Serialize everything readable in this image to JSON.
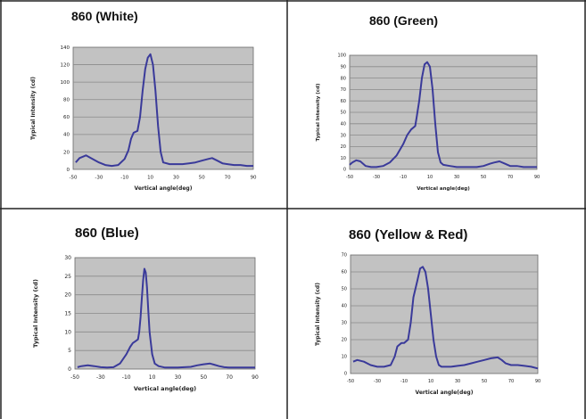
{
  "colors": {
    "plot_bg": "#c2c2c2",
    "grid": "#8a8a8a",
    "curve": "#3a3a9a",
    "border": "#222222"
  },
  "titles": {
    "white": "860 (White)",
    "green": "860 (Green)",
    "blue": "860 (Blue)",
    "yellow_red": "860 (Yellow & Red)"
  },
  "chart_data": [
    {
      "type": "line",
      "title": "860 (White)",
      "xlabel": "Vertical angle(deg)",
      "ylabel": "Typical Intensity (cd)",
      "xlim": [
        -50,
        90
      ],
      "ylim": [
        0,
        140
      ],
      "xticks": [
        "-50",
        "-30",
        "-10",
        "10",
        "30",
        "50",
        "70",
        "90"
      ],
      "yticks": [
        "0",
        "20",
        "40",
        "60",
        "80",
        "100",
        "120",
        "140"
      ],
      "series": [
        {
          "x": [
            -48,
            -45,
            -40,
            -35,
            -30,
            -25,
            -20,
            -15,
            -10,
            -7,
            -5,
            -3,
            0,
            2,
            4,
            6,
            8,
            10,
            12,
            14,
            16,
            18,
            20,
            25,
            30,
            35,
            40,
            45,
            50,
            55,
            58,
            62,
            66,
            70,
            75,
            80,
            85,
            90
          ],
          "y": [
            8,
            13,
            16,
            12,
            8,
            5,
            4,
            5,
            12,
            22,
            35,
            42,
            44,
            60,
            90,
            115,
            128,
            132,
            120,
            90,
            50,
            20,
            8,
            6,
            6,
            6,
            7,
            8,
            10,
            12,
            13,
            10,
            7,
            6,
            5,
            5,
            4,
            4
          ]
        }
      ]
    },
    {
      "type": "line",
      "title": "860 (Green)",
      "xlabel": "Vertical angle(deg)",
      "ylabel": "Typical Intensity (cd)",
      "xlim": [
        -50,
        90
      ],
      "ylim": [
        0,
        100
      ],
      "xticks": [
        "-50",
        "-30",
        "-10",
        "10",
        "30",
        "50",
        "70",
        "90"
      ],
      "yticks": [
        "0",
        "10",
        "20",
        "30",
        "40",
        "50",
        "60",
        "70",
        "80",
        "90",
        "100"
      ],
      "series": [
        {
          "x": [
            -50,
            -48,
            -45,
            -42,
            -38,
            -34,
            -30,
            -25,
            -20,
            -15,
            -10,
            -7,
            -4,
            -1,
            0,
            2,
            4,
            6,
            8,
            10,
            12,
            14,
            16,
            18,
            20,
            25,
            30,
            35,
            40,
            45,
            50,
            55,
            58,
            62,
            66,
            70,
            75,
            80,
            85,
            90
          ],
          "y": [
            4,
            6,
            8,
            7,
            3,
            2,
            2,
            3,
            6,
            12,
            22,
            30,
            35,
            38,
            45,
            60,
            80,
            92,
            94,
            90,
            70,
            40,
            15,
            6,
            4,
            3,
            2,
            2,
            2,
            2,
            3,
            5,
            6,
            7,
            5,
            3,
            3,
            2,
            2,
            2
          ]
        }
      ]
    },
    {
      "type": "line",
      "title": "860 (Blue)",
      "xlabel": "Vertical angle(deg)",
      "ylabel": "Typical Intensity (cd)",
      "xlim": [
        -50,
        90
      ],
      "ylim": [
        0,
        30
      ],
      "xticks": [
        "-50",
        "-30",
        "-10",
        "10",
        "30",
        "50",
        "70",
        "90"
      ],
      "yticks": [
        "0",
        "5",
        "10",
        "15",
        "20",
        "25",
        "30"
      ],
      "series": [
        {
          "x": [
            -48,
            -45,
            -40,
            -35,
            -30,
            -25,
            -20,
            -15,
            -10,
            -7,
            -5,
            -3,
            -1,
            0,
            1,
            2,
            3,
            4,
            5,
            6,
            7,
            8,
            10,
            12,
            15,
            20,
            25,
            30,
            35,
            40,
            45,
            50,
            55,
            58,
            62,
            66,
            70,
            75,
            80,
            85,
            90
          ],
          "y": [
            0.5,
            0.8,
            1,
            0.8,
            0.5,
            0.4,
            0.5,
            1.5,
            4,
            6,
            7,
            7.5,
            8,
            10,
            14,
            19,
            24,
            27,
            26,
            22,
            16,
            10,
            4,
            1.5,
            0.8,
            0.4,
            0.4,
            0.4,
            0.5,
            0.6,
            1,
            1.3,
            1.5,
            1.2,
            0.8,
            0.5,
            0.4,
            0.4,
            0.4,
            0.4,
            0.4
          ]
        }
      ]
    },
    {
      "type": "line",
      "title": "860 (Yellow & Red)",
      "xlabel": "Vertical angle(deg)",
      "ylabel": "Typical Intensity (cd)",
      "xlim": [
        -50,
        90
      ],
      "ylim": [
        0,
        70
      ],
      "xticks": [
        "-50",
        "-30",
        "-10",
        "10",
        "30",
        "50",
        "70",
        "90"
      ],
      "yticks": [
        "0",
        "10",
        "20",
        "30",
        "40",
        "50",
        "60",
        "70"
      ],
      "series": [
        {
          "x": [
            -48,
            -45,
            -40,
            -35,
            -30,
            -25,
            -20,
            -17,
            -15,
            -12,
            -10,
            -7,
            -5,
            -3,
            0,
            2,
            4,
            6,
            8,
            10,
            12,
            14,
            16,
            18,
            20,
            25,
            30,
            35,
            40,
            45,
            50,
            55,
            60,
            63,
            66,
            70,
            75,
            80,
            85,
            90
          ],
          "y": [
            7,
            8,
            7,
            5,
            4,
            4,
            5,
            10,
            16,
            18,
            18,
            20,
            30,
            45,
            55,
            62,
            63,
            60,
            50,
            35,
            20,
            10,
            5,
            4,
            4,
            4,
            4.5,
            5,
            6,
            7,
            8,
            9,
            9.5,
            8,
            6,
            5,
            5,
            4.5,
            4,
            3
          ]
        }
      ]
    }
  ]
}
